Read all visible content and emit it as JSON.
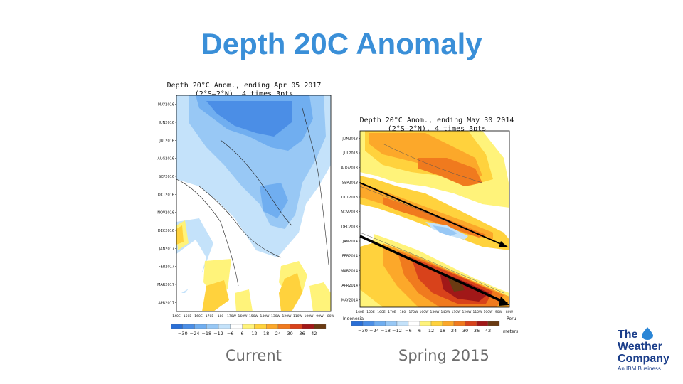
{
  "title": "Depth 20C Anomaly",
  "left": {
    "title_line1": "Depth 20°C Anom., ending Apr 05 2017",
    "title_line2": "(2°S–2°N), 4 times 3pts",
    "months": [
      "MAY2016",
      "JUN2016",
      "JUL2016",
      "AUG2016",
      "SEP2016",
      "OCT2016",
      "NOV2016",
      "DEC2016",
      "JAN2017",
      "FEB2017",
      "MAR2017",
      "APR2017"
    ],
    "lons": [
      "140E",
      "150E",
      "160E",
      "170E",
      "180",
      "170W",
      "160W",
      "150W",
      "140W",
      "130W",
      "120W",
      "110W",
      "100W",
      "90W",
      "80W"
    ],
    "caption": "Current"
  },
  "right": {
    "title_line1": "Depth 20°C Anom., ending May 30 2014",
    "title_line2": "(2°S–2°N), 4 times 3pts",
    "months": [
      "JUN2013",
      "JUL2013",
      "AUG2013",
      "SEP2013",
      "OCT2013",
      "NOV2013",
      "DEC2013",
      "JAN2014",
      "FEB2014",
      "MAR2014",
      "APR2014",
      "MAY2014"
    ],
    "lons": [
      "140E",
      "150E",
      "160E",
      "170E",
      "180",
      "170W",
      "160W",
      "150W",
      "140W",
      "130W",
      "120W",
      "110W",
      "100W",
      "90W",
      "80W"
    ],
    "left_label": "Indonesia",
    "right_label": "Peru",
    "units": "meters",
    "caption": "Spring 2015"
  },
  "colorbar": {
    "ticks": [
      "−30",
      "−24",
      "−18",
      "−12",
      "−6",
      "6",
      "12",
      "18",
      "24",
      "30",
      "36",
      "42"
    ],
    "colors": [
      "#2a6fd6",
      "#4b8ee6",
      "#70aef0",
      "#98c8f5",
      "#c4e2fa",
      "#ffffff",
      "#fff37a",
      "#ffd23d",
      "#fca82a",
      "#f07a1e",
      "#d8421b",
      "#a11818",
      "#6a3a12"
    ]
  },
  "logo": {
    "line1": "The",
    "line2": "Weather",
    "line3": "Company",
    "tagline": "An IBM Business",
    "drop_color": "#2b86d6"
  }
}
